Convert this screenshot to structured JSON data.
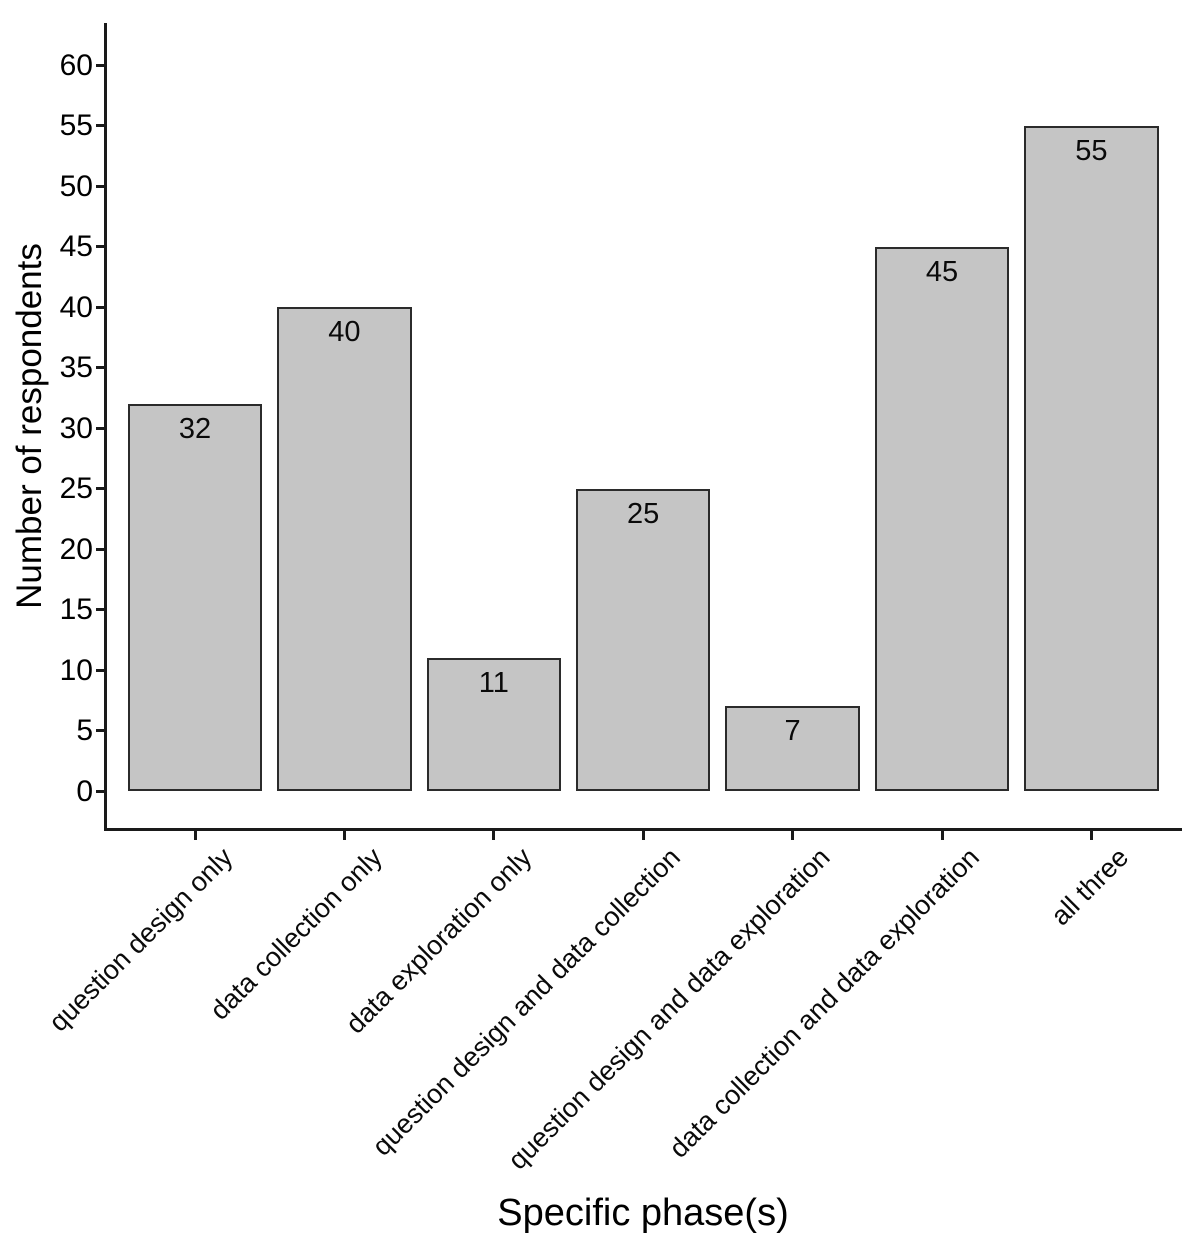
{
  "chart_data": {
    "type": "bar",
    "title": "",
    "xlabel": "Specific phase(s)",
    "ylabel": "Number of respondents",
    "categories": [
      "question design only",
      "data collection only",
      "data exploration only",
      "question design and data collection",
      "question design and data exploration",
      "data collection and data exploration",
      "all three"
    ],
    "values": [
      32,
      40,
      11,
      25,
      7,
      45,
      55
    ],
    "value_labels": [
      "32",
      "40",
      "11",
      "25",
      "7",
      "45",
      "55"
    ],
    "ylim": [
      0,
      60
    ],
    "ytick_step": 5,
    "yticks": [
      0,
      5,
      10,
      15,
      20,
      25,
      30,
      35,
      40,
      45,
      50,
      55,
      60
    ],
    "grid": false,
    "legend": "none",
    "bar_fill_color": "#c5c5c5",
    "bar_border_color": "#2b2b2b",
    "axis_color": "#1a1a1a",
    "x_label_rotation_deg": 45
  }
}
